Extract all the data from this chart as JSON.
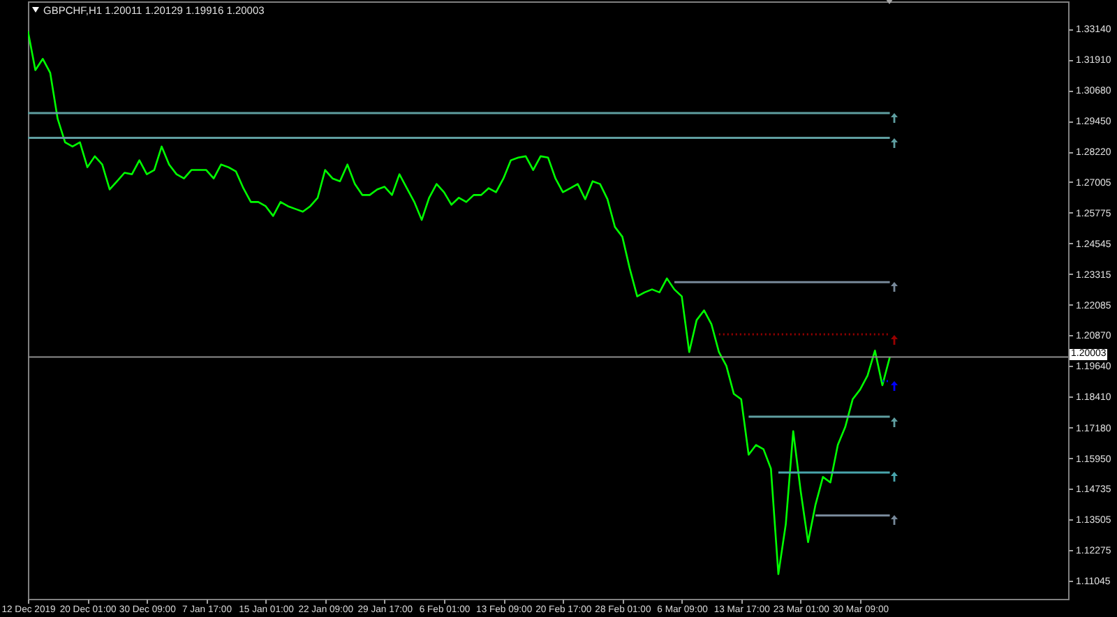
{
  "chart_data": {
    "type": "line",
    "title": "GBPCHF,H1 1.20011 1.20129 1.19916 1.20003",
    "categories": [
      "12 Dec 2019",
      null,
      null,
      null,
      null,
      null,
      null,
      null,
      "20 Dec 01:00",
      null,
      null,
      null,
      null,
      null,
      null,
      null,
      "30 Dec 09:00",
      null,
      null,
      null,
      null,
      null,
      null,
      null,
      "7 Jan 17:00",
      null,
      null,
      null,
      null,
      null,
      null,
      null,
      "15 Jan 01:00",
      null,
      null,
      null,
      null,
      null,
      null,
      null,
      "22 Jan 09:00",
      null,
      null,
      null,
      null,
      null,
      null,
      null,
      "29 Jan 17:00",
      null,
      null,
      null,
      null,
      null,
      null,
      null,
      "6 Feb 01:00",
      null,
      null,
      null,
      null,
      null,
      null,
      null,
      "13 Feb 09:00",
      null,
      null,
      null,
      null,
      null,
      null,
      null,
      "20 Feb 17:00",
      null,
      null,
      null,
      null,
      null,
      null,
      null,
      "28 Feb 01:00",
      null,
      null,
      null,
      null,
      null,
      null,
      null,
      "6 Mar 09:00",
      null,
      null,
      null,
      null,
      null,
      null,
      null,
      "13 Mar 17:00",
      null,
      null,
      null,
      null,
      null,
      null,
      null,
      "23 Mar 01:00",
      null,
      null,
      null,
      null,
      null,
      null,
      null,
      "30 Mar 09:00",
      null,
      null,
      null,
      null,
      null,
      null,
      null,
      null,
      null,
      null,
      null,
      null,
      null,
      null,
      null,
      null,
      null,
      null,
      null,
      null,
      null,
      null,
      null,
      null,
      null,
      null,
      null,
      null
    ],
    "ylim": [
      1.1032,
      1.3424
    ],
    "yticks": [
      {
        "value": 1.3314,
        "label": "1.33140"
      },
      {
        "value": 1.3191,
        "label": "1.31910"
      },
      {
        "value": 1.3068,
        "label": "1.30680"
      },
      {
        "value": 1.2945,
        "label": "1.29450"
      },
      {
        "value": 1.2822,
        "label": "1.28220"
      },
      1.27005,
      1.25775,
      1.24545,
      1.23315,
      1.22085,
      {
        "value": 1.2087,
        "label": "1.20870"
      },
      {
        "value": 1.1964,
        "label": "1.19640"
      },
      {
        "value": 1.1841,
        "label": "1.18410"
      },
      {
        "value": 1.1718,
        "label": "1.17180"
      },
      {
        "value": 1.1595,
        "label": "1.15950"
      },
      1.14735,
      1.13505,
      1.12275,
      1.11045
    ],
    "ref_lines": [
      {
        "axis": "y",
        "value": 1.20003,
        "label": "1.20003",
        "color": "#8c8c8c"
      }
    ],
    "series": [
      {
        "color": "#00ff00",
        "values": [
          1.3305,
          1.3149,
          1.3194,
          1.3138,
          1.2954,
          1.286,
          1.2843,
          1.286,
          1.276,
          1.2804,
          1.2771,
          1.2671,
          1.2704,
          1.2738,
          1.2732,
          1.2788,
          1.2732,
          1.2749,
          1.2843,
          1.2771,
          1.2732,
          1.2715,
          1.2749,
          1.2749,
          1.2749,
          1.2715,
          1.2771,
          1.276,
          1.2743,
          1.2676,
          1.2621,
          1.2621,
          1.2604,
          1.2565,
          1.2621,
          1.2604,
          1.2593,
          1.2582,
          1.2604,
          1.2638,
          1.2749,
          1.2715,
          1.2704,
          1.2771,
          1.2693,
          1.2649,
          1.2649,
          1.2671,
          1.2682,
          1.2649,
          1.2732,
          1.2676,
          1.2621,
          1.2549,
          1.2638,
          1.2693,
          1.266,
          1.261,
          1.2638,
          1.2621,
          1.2649,
          1.2649,
          1.2676,
          1.266,
          1.2715,
          1.2788,
          1.2799,
          1.2804,
          1.2749,
          1.2804,
          1.2799,
          1.2715,
          1.266,
          1.2676,
          1.2693,
          1.2632,
          1.2704,
          1.2693,
          1.2632,
          1.2521,
          1.2482,
          1.2354,
          1.2243,
          1.2259,
          1.2271,
          1.2259,
          1.2315,
          1.2271,
          1.2243,
          1.202,
          1.2148,
          1.2187,
          1.2131,
          1.202,
          1.1965,
          1.1853,
          1.1831,
          1.1609,
          1.1648,
          1.1631,
          1.1553,
          1.1131,
          1.1331,
          1.1703,
          1.1464,
          1.1259,
          1.1409,
          1.152,
          1.1498,
          1.1648,
          1.172,
          1.1831,
          1.187,
          1.1926,
          1.2026,
          1.1887,
          1.2,
          null,
          null,
          null,
          null,
          null,
          null,
          null,
          null,
          null,
          null,
          null,
          null,
          null,
          null,
          null,
          null,
          null,
          null,
          null,
          null,
          null,
          null,
          null,
          null
        ]
      },
      {
        "color": "#5f9ea0",
        "values": [
          1.2977,
          1.2977,
          1.2977,
          1.2977,
          1.2977,
          1.2977,
          1.2977,
          1.2977,
          1.2977,
          1.2977,
          1.2977,
          1.2977,
          1.2977,
          1.2977,
          1.2977,
          1.2977,
          1.2977,
          1.2977,
          1.2977,
          1.2977,
          1.2977,
          1.2977,
          1.2977,
          1.2977,
          1.2977,
          1.2977,
          1.2977,
          1.2977,
          1.2977,
          1.2977,
          1.2977,
          1.2977,
          1.2977,
          1.2977,
          1.2977,
          1.2977,
          1.2977,
          1.2977,
          1.2977,
          1.2977,
          1.2977,
          1.2977,
          1.2977,
          1.2977,
          1.2977,
          1.2977,
          1.2977,
          1.2977,
          1.2977,
          1.2977,
          1.2977,
          1.2977,
          1.2977,
          1.2977,
          1.2977,
          1.2977,
          1.2977,
          1.2977,
          1.2977,
          1.2977,
          1.2977,
          1.2977,
          1.2977,
          1.2977,
          1.2977,
          1.2977,
          1.2977,
          1.2977,
          1.2977,
          1.2977,
          1.2977,
          1.2977,
          1.2977,
          1.2977,
          1.2977,
          1.2977,
          1.2977,
          1.2977,
          1.2977,
          1.2977,
          1.2977,
          1.2977,
          1.2977,
          1.2977,
          1.2977,
          1.2977,
          1.2977,
          1.2977,
          1.2977,
          1.2977,
          1.2977,
          1.2977,
          1.2977,
          1.2977,
          1.2977,
          1.2977,
          1.2977,
          1.2977,
          1.2977,
          1.2977,
          1.2977,
          1.2977,
          1.2977,
          1.2977,
          1.2977,
          1.2977,
          1.2977,
          1.2977,
          1.2977,
          1.2977,
          1.2977,
          1.2977,
          1.2977,
          1.2977,
          1.2977,
          1.2977,
          1.2977,
          null,
          null,
          null,
          null,
          null,
          null,
          null,
          null,
          null,
          null,
          null,
          null,
          null,
          null,
          null,
          null,
          null,
          null,
          null,
          null,
          null,
          null,
          null,
          null
        ]
      },
      {
        "color": "#5f9ea0",
        "values": [
          1.2878,
          1.2878,
          1.2878,
          1.2878,
          1.2878,
          1.2878,
          1.2878,
          1.2878,
          1.2878,
          1.2878,
          1.2878,
          1.2878,
          1.2878,
          1.2878,
          1.2878,
          1.2878,
          1.2878,
          1.2878,
          1.2878,
          1.2878,
          1.2878,
          1.2878,
          1.2878,
          1.2878,
          1.2878,
          1.2878,
          1.2878,
          1.2878,
          1.2878,
          1.2878,
          1.2878,
          1.2878,
          1.2878,
          1.2878,
          1.2878,
          1.2878,
          1.2878,
          1.2878,
          1.2878,
          1.2878,
          1.2878,
          1.2878,
          1.2878,
          1.2878,
          1.2878,
          1.2878,
          1.2878,
          1.2878,
          1.2878,
          1.2878,
          1.2878,
          1.2878,
          1.2878,
          1.2878,
          1.2878,
          1.2878,
          1.2878,
          1.2878,
          1.2878,
          1.2878,
          1.2878,
          1.2878,
          1.2878,
          1.2878,
          1.2878,
          1.2878,
          1.2878,
          1.2878,
          1.2878,
          1.2878,
          1.2878,
          1.2878,
          1.2878,
          1.2878,
          1.2878,
          1.2878,
          1.2878,
          1.2878,
          1.2878,
          1.2878,
          1.2878,
          1.2878,
          1.2878,
          1.2878,
          1.2878,
          1.2878,
          1.2878,
          1.2878,
          1.2878,
          1.2878,
          1.2878,
          1.2878,
          1.2878,
          1.2878,
          1.2878,
          1.2878,
          1.2878,
          1.2878,
          1.2878,
          1.2878,
          1.2878,
          1.2878,
          1.2878,
          1.2878,
          1.2878,
          1.2878,
          1.2878,
          1.2878,
          1.2878,
          1.2878,
          1.2878,
          1.2878,
          1.2878,
          1.2878,
          1.2878,
          1.2878,
          1.2878,
          null,
          null,
          null,
          null,
          null,
          null,
          null,
          null,
          null,
          null,
          null,
          null,
          null,
          null,
          null,
          null,
          null,
          null,
          null,
          null,
          null,
          null,
          null,
          null
        ]
      },
      {
        "color": "#778899",
        "values": [
          null,
          null,
          null,
          null,
          null,
          null,
          null,
          null,
          null,
          null,
          null,
          null,
          null,
          null,
          null,
          null,
          null,
          null,
          null,
          null,
          null,
          null,
          null,
          null,
          null,
          null,
          null,
          null,
          null,
          null,
          null,
          null,
          null,
          null,
          null,
          null,
          null,
          null,
          null,
          null,
          null,
          null,
          null,
          null,
          null,
          null,
          null,
          null,
          null,
          null,
          null,
          null,
          null,
          null,
          null,
          null,
          null,
          null,
          null,
          null,
          null,
          null,
          null,
          null,
          null,
          null,
          null,
          null,
          null,
          null,
          null,
          null,
          null,
          null,
          null,
          null,
          null,
          null,
          null,
          null,
          null,
          null,
          null,
          null,
          null,
          null,
          null,
          1.23,
          1.23,
          1.23,
          1.23,
          1.23,
          1.23,
          1.23,
          1.23,
          1.23,
          1.23,
          1.23,
          1.23,
          1.23,
          1.23,
          1.23,
          1.23,
          1.23,
          1.23,
          1.23,
          1.23,
          1.23,
          1.23,
          1.23,
          1.23,
          1.23,
          1.23,
          1.23,
          1.23,
          1.23,
          1.23,
          null,
          null,
          null,
          null,
          null,
          null,
          null,
          null,
          null,
          null,
          null,
          null,
          null,
          null,
          null,
          null,
          null,
          null,
          null,
          null,
          null,
          null,
          null,
          null
        ]
      },
      {
        "color": "#990000",
        "line_style": "dotted",
        "values": [
          null,
          null,
          null,
          null,
          null,
          null,
          null,
          null,
          null,
          null,
          null,
          null,
          null,
          null,
          null,
          null,
          null,
          null,
          null,
          null,
          null,
          null,
          null,
          null,
          null,
          null,
          null,
          null,
          null,
          null,
          null,
          null,
          null,
          null,
          null,
          null,
          null,
          null,
          null,
          null,
          null,
          null,
          null,
          null,
          null,
          null,
          null,
          null,
          null,
          null,
          null,
          null,
          null,
          null,
          null,
          null,
          null,
          null,
          null,
          null,
          null,
          null,
          null,
          null,
          null,
          null,
          null,
          null,
          null,
          null,
          null,
          null,
          null,
          null,
          null,
          null,
          null,
          null,
          null,
          null,
          null,
          null,
          null,
          null,
          null,
          null,
          null,
          null,
          null,
          null,
          null,
          null,
          null,
          1.2091,
          1.2091,
          1.2091,
          1.2091,
          1.2091,
          1.2091,
          1.2091,
          1.2091,
          1.2091,
          1.2091,
          1.2091,
          1.2091,
          1.2091,
          1.2091,
          1.2091,
          1.2091,
          1.2091,
          1.2091,
          1.2091,
          1.2091,
          1.2091,
          1.2091,
          1.2091,
          1.2091,
          null,
          null,
          null,
          null,
          null,
          null,
          null,
          null,
          null,
          null,
          null,
          null,
          null,
          null,
          null,
          null,
          null,
          null,
          null,
          null,
          null,
          null,
          null,
          null
        ]
      },
      {
        "color": "#0000ff",
        "line_style": "dotted",
        "values": [
          null,
          null,
          null,
          null,
          null,
          null,
          null,
          null,
          null,
          null,
          null,
          null,
          null,
          null,
          null,
          null,
          null,
          null,
          null,
          null,
          null,
          null,
          null,
          null,
          null,
          null,
          null,
          null,
          null,
          null,
          null,
          null,
          null,
          null,
          null,
          null,
          null,
          null,
          null,
          null,
          null,
          null,
          null,
          null,
          null,
          null,
          null,
          null,
          null,
          null,
          null,
          null,
          null,
          null,
          null,
          null,
          null,
          null,
          null,
          null,
          null,
          null,
          null,
          null,
          null,
          null,
          null,
          null,
          null,
          null,
          null,
          null,
          null,
          null,
          null,
          null,
          null,
          null,
          null,
          null,
          null,
          null,
          null,
          null,
          null,
          null,
          null,
          null,
          null,
          null,
          null,
          null,
          null,
          null,
          null,
          null,
          null,
          null,
          null,
          null,
          null,
          null,
          null,
          null,
          null,
          null,
          null,
          null,
          null,
          null,
          null,
          null,
          null,
          null,
          null,
          1.1904,
          1.1904,
          null,
          null,
          null,
          null,
          null,
          null,
          null,
          null,
          null,
          null,
          null,
          null,
          null,
          null,
          null,
          null,
          null,
          null,
          null,
          null,
          null,
          null,
          null,
          null
        ]
      },
      {
        "color": "#5f9ea0",
        "values": [
          null,
          null,
          null,
          null,
          null,
          null,
          null,
          null,
          null,
          null,
          null,
          null,
          null,
          null,
          null,
          null,
          null,
          null,
          null,
          null,
          null,
          null,
          null,
          null,
          null,
          null,
          null,
          null,
          null,
          null,
          null,
          null,
          null,
          null,
          null,
          null,
          null,
          null,
          null,
          null,
          null,
          null,
          null,
          null,
          null,
          null,
          null,
          null,
          null,
          null,
          null,
          null,
          null,
          null,
          null,
          null,
          null,
          null,
          null,
          null,
          null,
          null,
          null,
          null,
          null,
          null,
          null,
          null,
          null,
          null,
          null,
          null,
          null,
          null,
          null,
          null,
          null,
          null,
          null,
          null,
          null,
          null,
          null,
          null,
          null,
          null,
          null,
          null,
          null,
          null,
          null,
          null,
          null,
          null,
          null,
          null,
          null,
          1.1761,
          1.1761,
          1.1761,
          1.1761,
          1.1761,
          1.1761,
          1.1761,
          1.1761,
          1.1761,
          1.1761,
          1.1761,
          1.1761,
          1.1761,
          1.1761,
          1.1761,
          1.1761,
          1.1761,
          1.1761,
          1.1761,
          1.1761,
          null,
          null,
          null,
          null,
          null,
          null,
          null,
          null,
          null,
          null,
          null,
          null,
          null,
          null,
          null,
          null,
          null,
          null,
          null,
          null,
          null,
          null,
          null,
          null
        ]
      },
      {
        "color": "#48a4ac",
        "values": [
          null,
          null,
          null,
          null,
          null,
          null,
          null,
          null,
          null,
          null,
          null,
          null,
          null,
          null,
          null,
          null,
          null,
          null,
          null,
          null,
          null,
          null,
          null,
          null,
          null,
          null,
          null,
          null,
          null,
          null,
          null,
          null,
          null,
          null,
          null,
          null,
          null,
          null,
          null,
          null,
          null,
          null,
          null,
          null,
          null,
          null,
          null,
          null,
          null,
          null,
          null,
          null,
          null,
          null,
          null,
          null,
          null,
          null,
          null,
          null,
          null,
          null,
          null,
          null,
          null,
          null,
          null,
          null,
          null,
          null,
          null,
          null,
          null,
          null,
          null,
          null,
          null,
          null,
          null,
          null,
          null,
          null,
          null,
          null,
          null,
          null,
          null,
          null,
          null,
          null,
          null,
          null,
          null,
          null,
          null,
          null,
          null,
          null,
          null,
          null,
          null,
          1.1538,
          1.1538,
          1.1538,
          1.1538,
          1.1538,
          1.1538,
          1.1538,
          1.1538,
          1.1538,
          1.1538,
          1.1538,
          1.1538,
          1.1538,
          1.1538,
          1.1538,
          1.1538,
          null,
          null,
          null,
          null,
          null,
          null,
          null,
          null,
          null,
          null,
          null,
          null,
          null,
          null,
          null,
          null,
          null,
          null,
          null,
          null,
          null,
          null,
          null,
          null
        ]
      },
      {
        "color": "#778899",
        "values": [
          null,
          null,
          null,
          null,
          null,
          null,
          null,
          null,
          null,
          null,
          null,
          null,
          null,
          null,
          null,
          null,
          null,
          null,
          null,
          null,
          null,
          null,
          null,
          null,
          null,
          null,
          null,
          null,
          null,
          null,
          null,
          null,
          null,
          null,
          null,
          null,
          null,
          null,
          null,
          null,
          null,
          null,
          null,
          null,
          null,
          null,
          null,
          null,
          null,
          null,
          null,
          null,
          null,
          null,
          null,
          null,
          null,
          null,
          null,
          null,
          null,
          null,
          null,
          null,
          null,
          null,
          null,
          null,
          null,
          null,
          null,
          null,
          null,
          null,
          null,
          null,
          null,
          null,
          null,
          null,
          null,
          null,
          null,
          null,
          null,
          null,
          null,
          null,
          null,
          null,
          null,
          null,
          null,
          null,
          null,
          null,
          null,
          null,
          null,
          null,
          null,
          null,
          null,
          null,
          null,
          null,
          1.1366,
          1.1366,
          1.1366,
          1.1366,
          1.1366,
          1.1366,
          1.1366,
          1.1366,
          1.1366,
          1.1366,
          1.1366,
          null,
          null,
          null,
          null,
          null,
          null,
          null,
          null,
          null,
          null,
          null,
          null,
          null,
          null,
          null,
          null,
          null,
          null,
          null,
          null,
          null,
          null,
          null,
          null
        ]
      }
    ]
  }
}
